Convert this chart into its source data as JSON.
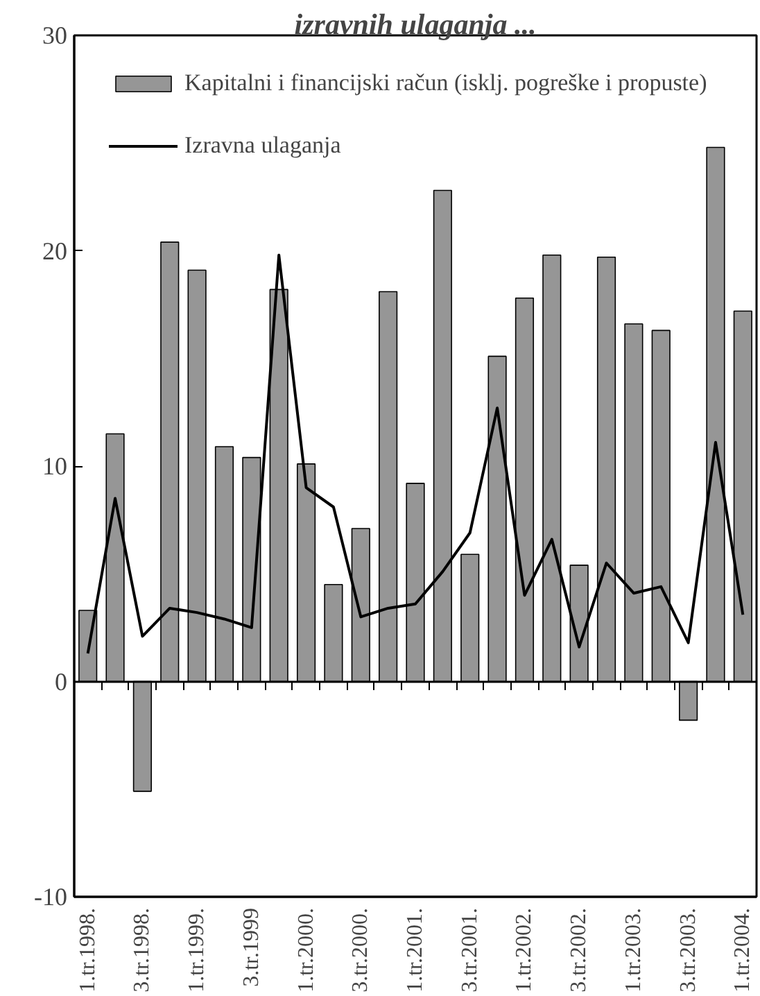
{
  "chart_data": {
    "type": "bar",
    "title": "izravnih ulaganja ...",
    "categories": [
      "1.tr.1998.",
      null,
      "3.tr.1998.",
      null,
      "1.tr.1999.",
      null,
      "3.tr.1999",
      null,
      "1.tr.2000.",
      null,
      "3.tr.2000.",
      null,
      "1.tr.2001.",
      null,
      "3.tr.2001.",
      null,
      "1.tr.2002.",
      null,
      "3.tr.2002.",
      null,
      "1.tr.2003.",
      null,
      "3.tr.2003.",
      null,
      "1.tr.2004."
    ],
    "series": [
      {
        "name": "Kapitalni i financijski račun (isklj. pogreške i propuste)",
        "color": "#969696",
        "values": [
          3.3,
          11.5,
          -5.1,
          20.4,
          19.1,
          10.9,
          10.4,
          18.2,
          10.1,
          4.5,
          7.1,
          18.1,
          9.2,
          22.8,
          5.9,
          15.1,
          17.8,
          19.8,
          5.4,
          19.7,
          16.6,
          16.3,
          -1.8,
          24.8,
          17.2
        ]
      },
      {
        "name": "Izravna ulaganja",
        "type": "line",
        "color": "#000000",
        "values": [
          1.3,
          8.5,
          2.1,
          3.4,
          3.2,
          2.9,
          2.5,
          19.8,
          9.0,
          8.1,
          3.0,
          3.4,
          3.6,
          5.1,
          6.9,
          12.7,
          4.0,
          6.6,
          1.6,
          5.5,
          4.1,
          4.4,
          1.8,
          11.1,
          3.1
        ]
      }
    ],
    "ylim": [
      -10,
      30
    ],
    "yticks": [
      -10,
      0,
      10,
      20,
      30
    ],
    "legend": "top left"
  }
}
